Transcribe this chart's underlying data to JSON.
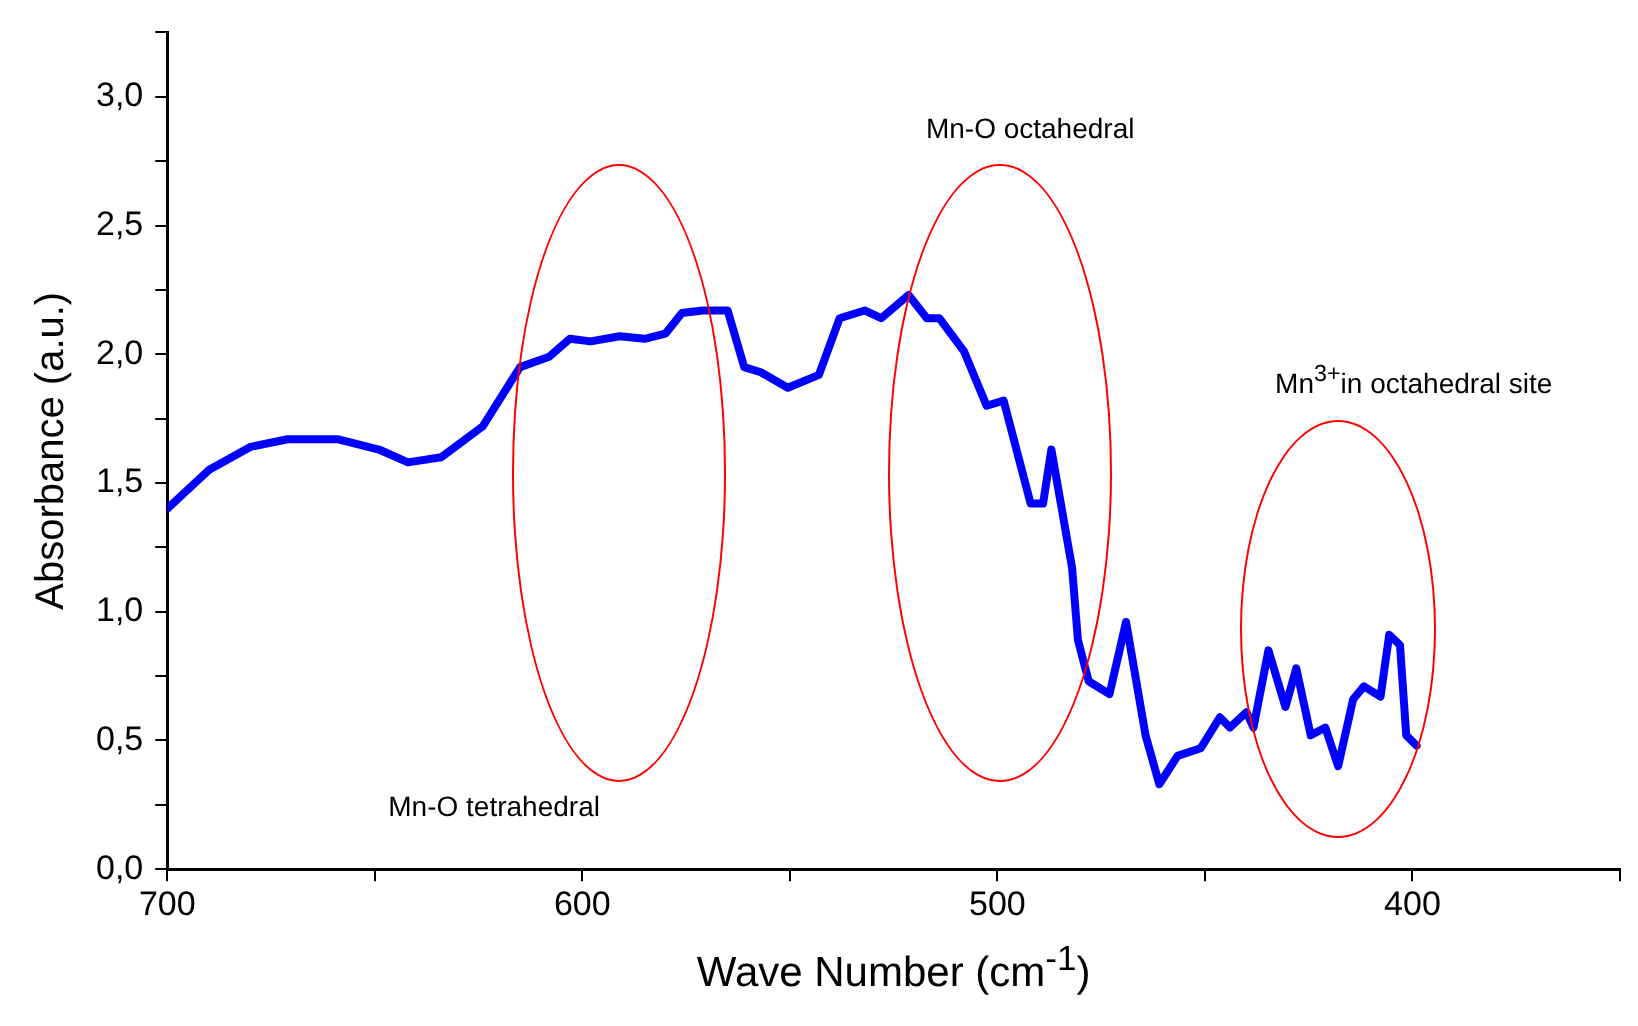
{
  "chart_data": {
    "type": "line",
    "xlabel": "Wave Number (cm$^{-1}$)",
    "ylabel": "Absorbance (a.u.)",
    "xlim": [
      700,
      350
    ],
    "xticks": [
      700,
      {
        "value": 650,
        "label": null
      },
      600,
      {
        "value": 550,
        "label": null
      },
      500,
      {
        "value": 450,
        "label": null
      },
      400,
      {
        "value": 350,
        "label": null
      }
    ],
    "ylim": [
      0,
      3.25
    ],
    "yticks": [
      {
        "value": 0,
        "label": "0,0"
      },
      {
        "value": 0.25,
        "label": null
      },
      {
        "value": 0.5,
        "label": "0,5"
      },
      {
        "value": 0.75,
        "label": null
      },
      {
        "value": 1,
        "label": "1,0"
      },
      {
        "value": 1.25,
        "label": null
      },
      {
        "value": 1.5,
        "label": "1,5"
      },
      {
        "value": 1.75,
        "label": null
      },
      {
        "value": 2,
        "label": "2,0"
      },
      {
        "value": 2.25,
        "label": null
      },
      {
        "value": 2.5,
        "label": "2,5"
      },
      {
        "value": 2.75,
        "label": null
      },
      {
        "value": 3,
        "label": "3,0"
      },
      {
        "value": 3.25,
        "label": null
      }
    ],
    "grid": false,
    "legend": false,
    "marker": "none",
    "line_style": "solid",
    "series": [
      {
        "color": "#0000ff",
        "x": [
          700,
          690,
          680,
          671,
          659,
          649,
          642,
          634,
          624,
          615,
          608,
          603,
          598,
          591,
          585,
          580,
          576,
          571,
          565,
          561,
          557,
          550.5,
          543,
          538,
          532,
          528,
          521.4,
          517,
          514,
          508,
          502.6,
          498.5,
          492,
          489,
          487,
          482,
          480.6,
          478,
          473,
          469,
          464.3,
          461,
          456.6,
          451,
          446.4,
          444,
          440,
          438.3,
          434.7,
          430.6,
          428,
          424.5,
          421,
          417.9,
          414.3,
          411.7,
          407.7,
          405.6,
          403,
          401.5,
          399
        ],
        "values": [
          1.4,
          1.55,
          1.64,
          1.67,
          1.67,
          1.63,
          1.58,
          1.6,
          1.72,
          1.95,
          1.99,
          2.06,
          2.05,
          2.07,
          2.06,
          2.08,
          2.16,
          2.17,
          2.17,
          1.95,
          1.93,
          1.87,
          1.92,
          2.14,
          2.17,
          2.14,
          2.23,
          2.14,
          2.14,
          2.01,
          1.8,
          1.82,
          1.42,
          1.42,
          1.63,
          1.17,
          0.89,
          0.73,
          0.68,
          0.96,
          0.52,
          0.33,
          0.44,
          0.47,
          0.59,
          0.55,
          0.61,
          0.55,
          0.85,
          0.63,
          0.78,
          0.52,
          0.55,
          0.4,
          0.66,
          0.71,
          0.67,
          0.91,
          0.87,
          0.52,
          0.48
        ]
      }
    ],
    "annotations": [
      "Mn-O tetrahedral",
      "Mn-O octahedral",
      "Mn$^{3+}$in octahedral site"
    ]
  }
}
